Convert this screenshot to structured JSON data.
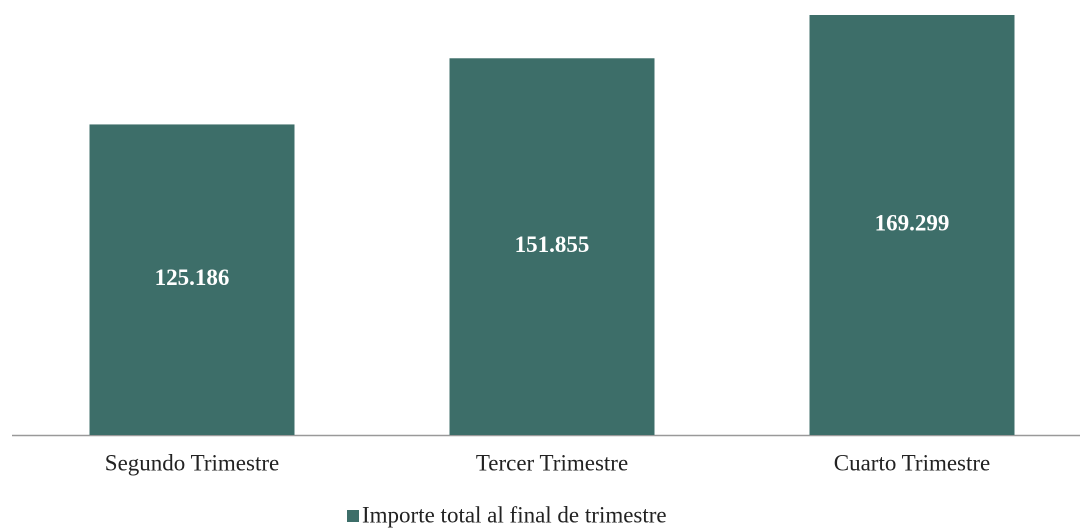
{
  "chart_data": {
    "type": "bar",
    "categories": [
      "Segundo Trimestre",
      "Tercer Trimestre",
      "Cuarto Trimestre"
    ],
    "series": [
      {
        "name": "Importe total al final de trimestre",
        "color": "#3d6e69",
        "values": [
          125.186,
          151.855,
          169.299
        ]
      }
    ]
  }
}
